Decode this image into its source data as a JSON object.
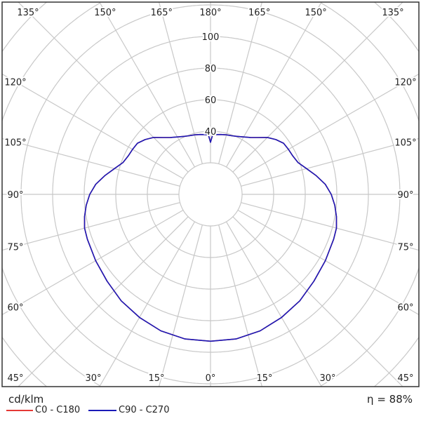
{
  "chart_data": {
    "type": "polar-line",
    "unit": "cd/klm",
    "efficiency_label": "η = 88%",
    "radial_ticks": [
      20,
      40,
      60,
      80,
      100,
      120,
      140,
      160
    ],
    "radial_tick_labels": [
      "40",
      "60",
      "80",
      "100"
    ],
    "angle_step_deg": 15,
    "angle_labels": [
      "0°",
      "15°",
      "30°",
      "45°",
      "60°",
      "75°",
      "90°",
      "105°",
      "120°",
      "135°",
      "150°",
      "165°",
      "180°"
    ],
    "grid": true,
    "legend_position": "bottom-left",
    "series": [
      {
        "name": "C0 - C180",
        "color": "#e53935",
        "gamma": [
          0,
          10,
          20,
          30,
          40,
          50,
          60,
          70,
          75,
          80,
          85,
          90,
          95,
          100,
          105,
          110,
          115,
          120,
          125,
          130,
          135,
          140,
          145,
          150,
          155,
          160,
          165,
          170,
          175,
          178,
          180
        ],
        "values": [
          93,
          93,
          92,
          90,
          88,
          85.5,
          84,
          83,
          82.6,
          81,
          79,
          76.5,
          73,
          68,
          63,
          59,
          57.5,
          57,
          56.5,
          54,
          51,
          47,
          44,
          42,
          40.5,
          39.5,
          39,
          38.5,
          38,
          37.5,
          33
        ]
      },
      {
        "name": "C90 - C270",
        "color": "#1a1ab8",
        "gamma": [
          0,
          10,
          20,
          30,
          40,
          50,
          60,
          70,
          75,
          80,
          85,
          90,
          95,
          100,
          105,
          110,
          115,
          120,
          125,
          130,
          135,
          140,
          145,
          150,
          155,
          160,
          165,
          170,
          175,
          178,
          180
        ],
        "values": [
          93,
          93,
          92,
          90,
          88,
          85.5,
          84,
          83,
          82.6,
          81,
          79,
          76.5,
          73,
          68,
          63,
          59,
          57.5,
          57,
          56.5,
          54,
          51,
          47,
          44,
          42,
          40.5,
          39.5,
          39,
          38.5,
          38,
          37.5,
          33
        ]
      }
    ]
  }
}
